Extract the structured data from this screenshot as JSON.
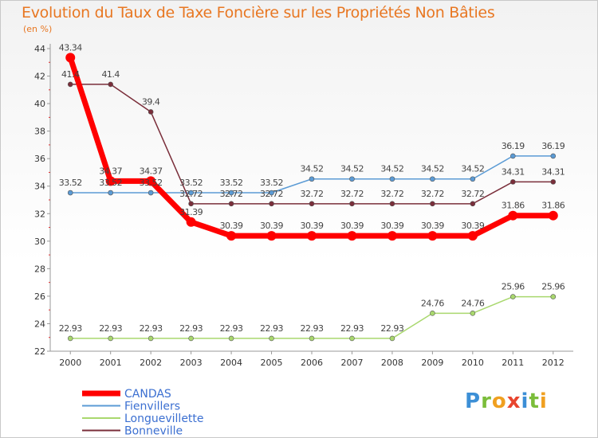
{
  "chart_data": {
    "type": "line",
    "title": "Evolution du Taux de Taxe Foncière sur les Propriétés Non Bâties",
    "ylabel": "(en %)",
    "xlabel": "",
    "categories": [
      "2000",
      "2001",
      "2002",
      "2003",
      "2004",
      "2005",
      "2006",
      "2007",
      "2008",
      "2009",
      "2010",
      "2011",
      "2012"
    ],
    "ylim": [
      22,
      44
    ],
    "yticks": [
      22,
      24,
      26,
      28,
      30,
      32,
      34,
      36,
      38,
      40,
      42,
      44
    ],
    "series": [
      {
        "name": "Fienvillers",
        "color": "#5b9bd5",
        "values": [
          33.52,
          33.52,
          33.52,
          33.52,
          33.52,
          33.52,
          34.52,
          34.52,
          34.52,
          34.52,
          34.52,
          36.19,
          36.19
        ],
        "labels": [
          "33.52",
          "33.52",
          "33.52",
          "33.52",
          "33.52",
          "33.52",
          "34.52",
          "34.52",
          "34.52",
          "34.52",
          "34.52",
          "36.19",
          "36.19"
        ]
      },
      {
        "name": "Longuevillette",
        "color": "#a9d86e",
        "values": [
          22.93,
          22.93,
          22.93,
          22.93,
          22.93,
          22.93,
          22.93,
          22.93,
          22.93,
          24.76,
          24.76,
          25.96,
          25.96
        ],
        "labels": [
          "22.93",
          "22.93",
          "22.93",
          "22.93",
          "22.93",
          "22.93",
          "22.93",
          "22.93",
          "22.93",
          "24.76",
          "24.76",
          "25.96",
          "25.96"
        ]
      },
      {
        "name": "Bonneville",
        "color": "#7a2e3a",
        "values": [
          41.4,
          41.4,
          39.4,
          32.72,
          32.72,
          32.72,
          32.72,
          32.72,
          32.72,
          32.72,
          32.72,
          34.31,
          34.31
        ],
        "labels": [
          "41.4",
          "41.4",
          "39.4",
          "32.72",
          "32.72",
          "32.72",
          "32.72",
          "32.72",
          "32.72",
          "32.72",
          "32.72",
          "34.31",
          "34.31"
        ]
      },
      {
        "name": "CANDAS",
        "color": "#ff0000",
        "values": [
          43.34,
          34.37,
          34.37,
          31.39,
          30.39,
          30.39,
          30.39,
          30.39,
          30.39,
          30.39,
          30.39,
          31.86,
          31.86
        ],
        "labels": [
          "43.34",
          "34.37",
          "34.37",
          "31.39",
          "30.39",
          "30.39",
          "30.39",
          "30.39",
          "30.39",
          "30.39",
          "30.39",
          "31.86",
          "31.86"
        ]
      }
    ],
    "legend": [
      "CANDAS",
      "Fienvillers",
      "Longuevillette",
      "Bonneville"
    ],
    "legend_position": "bottom-left"
  },
  "logo": {
    "text": "Proxiti"
  }
}
